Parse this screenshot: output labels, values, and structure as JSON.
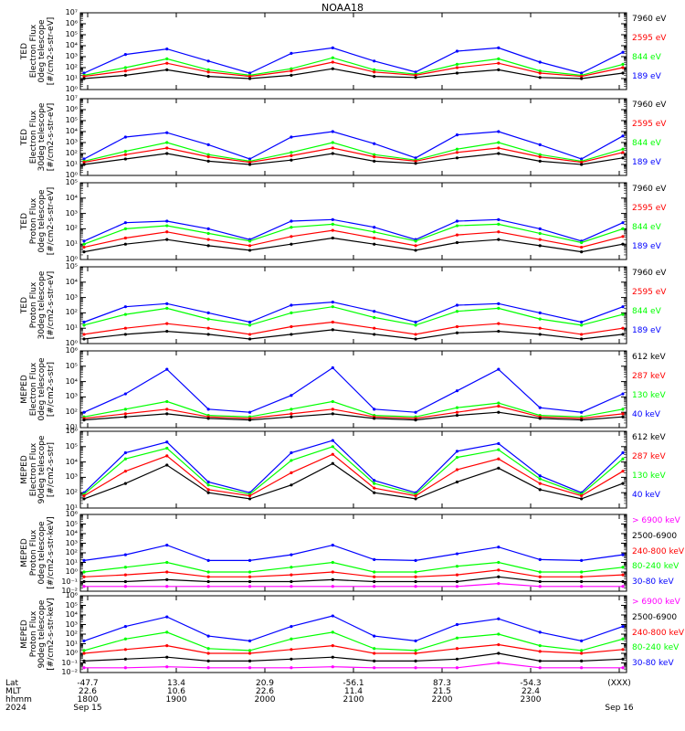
{
  "title": "NOAA18",
  "colors": {
    "black": "#000000",
    "red": "#ff0000",
    "green": "#00ff00",
    "blue": "#0000ff",
    "magenta": "#ff00ff"
  },
  "chart_data": [
    {
      "type": "line",
      "panel": "ted-e-0",
      "ylabel": [
        "TED",
        "Electron Flux",
        "0deg telescope",
        "[#/cm2-s-str-eV]"
      ],
      "yscale": "log",
      "ylim_exp": [
        0,
        7
      ],
      "legend": [
        {
          "name": "7960 eV",
          "color": "black"
        },
        {
          "name": "2595 eV",
          "color": "red"
        },
        {
          "name": "844 eV",
          "color": "green"
        },
        {
          "name": "189 eV",
          "color": "blue"
        }
      ],
      "series": [
        {
          "name": "7960 eV",
          "values": [
            1.0,
            1.3,
            1.8,
            1.2,
            1.0,
            1.3,
            1.9,
            1.2,
            1.1,
            1.5,
            1.8,
            1.1,
            1.0,
            1.5
          ]
        },
        {
          "name": "2595 eV",
          "values": [
            1.2,
            1.7,
            2.4,
            1.6,
            1.2,
            1.7,
            2.5,
            1.6,
            1.3,
            2.0,
            2.4,
            1.5,
            1.2,
            2.0
          ]
        },
        {
          "name": "844 eV",
          "values": [
            1.3,
            2.0,
            2.8,
            1.8,
            1.3,
            1.9,
            2.9,
            1.8,
            1.4,
            2.3,
            2.8,
            1.7,
            1.3,
            2.3
          ]
        },
        {
          "name": "189 eV",
          "values": [
            1.5,
            3.2,
            3.7,
            2.6,
            1.5,
            3.3,
            3.8,
            2.6,
            1.6,
            3.5,
            3.8,
            2.5,
            1.5,
            3.4
          ]
        }
      ]
    },
    {
      "type": "line",
      "panel": "ted-e-30",
      "ylabel": [
        "TED",
        "Electron Flux",
        "30deg telescope",
        "[#/cm2-s-str-eV]"
      ],
      "yscale": "log",
      "ylim_exp": [
        0,
        7
      ],
      "legend": [
        {
          "name": "7960 eV",
          "color": "black"
        },
        {
          "name": "2595 eV",
          "color": "red"
        },
        {
          "name": "844 eV",
          "color": "green"
        },
        {
          "name": "189 eV",
          "color": "blue"
        }
      ],
      "series": [
        {
          "name": "7960 eV",
          "values": [
            1.0,
            1.5,
            2.0,
            1.3,
            1.0,
            1.4,
            2.0,
            1.3,
            1.1,
            1.6,
            2.0,
            1.3,
            1.0,
            1.6
          ]
        },
        {
          "name": "2595 eV",
          "values": [
            1.2,
            1.9,
            2.5,
            1.7,
            1.2,
            1.8,
            2.5,
            1.7,
            1.3,
            2.1,
            2.5,
            1.7,
            1.2,
            2.1
          ]
        },
        {
          "name": "844 eV",
          "values": [
            1.3,
            2.2,
            3.0,
            1.9,
            1.3,
            2.1,
            3.0,
            1.9,
            1.4,
            2.4,
            3.0,
            1.9,
            1.3,
            2.4
          ]
        },
        {
          "name": "189 eV",
          "values": [
            1.5,
            3.5,
            3.9,
            2.8,
            1.5,
            3.5,
            4.0,
            2.9,
            1.6,
            3.7,
            4.0,
            2.8,
            1.5,
            3.6
          ]
        }
      ]
    },
    {
      "type": "line",
      "panel": "ted-p-0",
      "ylabel": [
        "TED",
        "Proton Flux",
        "0deg telescope",
        "[#/cm2-s-str-eV]"
      ],
      "yscale": "log",
      "ylim_exp": [
        0,
        5
      ],
      "legend": [
        {
          "name": "7960 eV",
          "color": "black"
        },
        {
          "name": "2595 eV",
          "color": "red"
        },
        {
          "name": "844 eV",
          "color": "green"
        },
        {
          "name": "189 eV",
          "color": "blue"
        }
      ],
      "series": [
        {
          "name": "7960 eV",
          "values": [
            0.5,
            1.0,
            1.3,
            0.9,
            0.6,
            1.0,
            1.4,
            1.0,
            0.6,
            1.1,
            1.3,
            0.9,
            0.5,
            1.0
          ]
        },
        {
          "name": "2595 eV",
          "values": [
            0.8,
            1.4,
            1.8,
            1.3,
            0.9,
            1.5,
            1.9,
            1.4,
            0.9,
            1.6,
            1.8,
            1.3,
            0.8,
            1.5
          ]
        },
        {
          "name": "844 eV",
          "values": [
            1.0,
            2.0,
            2.2,
            1.7,
            1.2,
            2.1,
            2.3,
            1.8,
            1.2,
            2.2,
            2.3,
            1.7,
            1.1,
            2.0
          ]
        },
        {
          "name": "189 eV",
          "values": [
            1.2,
            2.4,
            2.5,
            2.0,
            1.3,
            2.5,
            2.6,
            2.1,
            1.3,
            2.5,
            2.6,
            2.0,
            1.2,
            2.4
          ]
        }
      ]
    },
    {
      "type": "line",
      "panel": "ted-p-30",
      "ylabel": [
        "TED",
        "Proton Flux",
        "30deg telescope",
        "[#/cm2-s-str-eV]"
      ],
      "yscale": "log",
      "ylim_exp": [
        0,
        5
      ],
      "legend": [
        {
          "name": "7960 eV",
          "color": "black"
        },
        {
          "name": "2595 eV",
          "color": "red"
        },
        {
          "name": "844 eV",
          "color": "green"
        },
        {
          "name": "189 eV",
          "color": "blue"
        }
      ],
      "series": [
        {
          "name": "7960 eV",
          "values": [
            0.3,
            0.6,
            0.8,
            0.6,
            0.3,
            0.6,
            0.9,
            0.6,
            0.3,
            0.7,
            0.8,
            0.6,
            0.3,
            0.6
          ]
        },
        {
          "name": "2595 eV",
          "values": [
            0.6,
            1.0,
            1.3,
            1.0,
            0.6,
            1.1,
            1.4,
            1.0,
            0.6,
            1.1,
            1.3,
            1.0,
            0.6,
            1.0
          ]
        },
        {
          "name": "844 eV",
          "values": [
            1.2,
            1.9,
            2.3,
            1.6,
            1.2,
            2.0,
            2.4,
            1.7,
            1.2,
            2.1,
            2.3,
            1.6,
            1.2,
            1.9
          ]
        },
        {
          "name": "189 eV",
          "values": [
            1.4,
            2.4,
            2.6,
            2.0,
            1.4,
            2.5,
            2.7,
            2.1,
            1.4,
            2.5,
            2.6,
            2.0,
            1.4,
            2.4
          ]
        }
      ]
    },
    {
      "type": "line",
      "panel": "meped-e-0",
      "ylabel": [
        "MEPED",
        "Electron Flux",
        "0deg telescope",
        "[#/cm2-s-str]"
      ],
      "yscale": "log",
      "ylim_exp": [
        1,
        6
      ],
      "legend": [
        {
          "name": "612 keV",
          "color": "black"
        },
        {
          "name": "287 keV",
          "color": "red"
        },
        {
          "name": "130 keV",
          "color": "green"
        },
        {
          "name": "40 keV",
          "color": "blue"
        }
      ],
      "series": [
        {
          "name": "612 keV",
          "values": [
            1.5,
            1.7,
            1.9,
            1.6,
            1.5,
            1.7,
            1.9,
            1.6,
            1.5,
            1.8,
            2.0,
            1.6,
            1.5,
            1.7
          ]
        },
        {
          "name": "287 keV",
          "values": [
            1.6,
            1.9,
            2.2,
            1.7,
            1.6,
            1.9,
            2.2,
            1.7,
            1.6,
            2.0,
            2.4,
            1.7,
            1.6,
            1.9
          ]
        },
        {
          "name": "130 keV",
          "values": [
            1.7,
            2.2,
            2.7,
            1.8,
            1.7,
            2.2,
            2.7,
            1.8,
            1.7,
            2.3,
            2.6,
            1.8,
            1.7,
            2.2
          ]
        },
        {
          "name": "40 keV",
          "values": [
            2.0,
            3.2,
            4.8,
            2.2,
            2.0,
            3.1,
            4.9,
            2.2,
            2.0,
            3.4,
            4.8,
            2.3,
            2.0,
            3.2
          ]
        }
      ]
    },
    {
      "type": "line",
      "panel": "meped-e-90",
      "ylabel": [
        "MEPED",
        "Electron Flux",
        "90deg telescope",
        "[#/cm2-s-str]"
      ],
      "yscale": "log",
      "ylim_exp": [
        1,
        6
      ],
      "legend": [
        {
          "name": "612 keV",
          "color": "black"
        },
        {
          "name": "287 keV",
          "color": "red"
        },
        {
          "name": "130 keV",
          "color": "green"
        },
        {
          "name": "40 keV",
          "color": "blue"
        }
      ],
      "series": [
        {
          "name": "612 keV",
          "values": [
            1.6,
            2.6,
            3.8,
            2.0,
            1.6,
            2.5,
            3.9,
            2.0,
            1.6,
            2.7,
            3.6,
            2.2,
            1.6,
            2.6
          ]
        },
        {
          "name": "287 keV",
          "values": [
            1.8,
            3.4,
            4.4,
            2.2,
            1.8,
            3.3,
            4.5,
            2.3,
            1.8,
            3.5,
            4.2,
            2.6,
            1.8,
            3.4
          ]
        },
        {
          "name": "130 keV",
          "values": [
            1.9,
            4.2,
            4.9,
            2.5,
            1.9,
            4.1,
            5.0,
            2.6,
            1.9,
            4.3,
            4.8,
            2.9,
            1.9,
            4.2
          ]
        },
        {
          "name": "40 keV",
          "values": [
            2.0,
            4.6,
            5.3,
            2.7,
            2.0,
            4.6,
            5.4,
            2.8,
            2.0,
            4.7,
            5.2,
            3.1,
            2.0,
            4.6
          ]
        }
      ]
    },
    {
      "type": "line",
      "panel": "meped-p-0",
      "ylabel": [
        "MEPED",
        "Proton Flux",
        "0deg telescope",
        "[#/cm2-s-str-keV]"
      ],
      "yscale": "log",
      "ylim_exp": [
        -2,
        6
      ],
      "legend": [
        {
          "name": "> 6900 keV",
          "color": "magenta"
        },
        {
          "name": "2500-6900",
          "color": "black"
        },
        {
          "name": "240-800 keV",
          "color": "red"
        },
        {
          "name": "80-240 keV",
          "color": "green"
        },
        {
          "name": "30-80 keV",
          "color": "blue"
        }
      ],
      "series": [
        {
          "name": "> 6900 keV",
          "values": [
            -1.5,
            -1.5,
            -1.5,
            -1.5,
            -1.5,
            -1.5,
            -1.5,
            -1.5,
            -1.5,
            -1.5,
            -1.2,
            -1.5,
            -1.5,
            -1.5
          ]
        },
        {
          "name": "2500-6900",
          "values": [
            -1.0,
            -1.0,
            -0.8,
            -1.0,
            -1.0,
            -1.0,
            -0.8,
            -1.0,
            -1.0,
            -1.0,
            -0.5,
            -1.0,
            -1.0,
            -1.0
          ]
        },
        {
          "name": "240-800 keV",
          "values": [
            -0.5,
            -0.3,
            0.0,
            -0.5,
            -0.5,
            -0.3,
            0.0,
            -0.5,
            -0.5,
            -0.3,
            0.2,
            -0.5,
            -0.5,
            -0.3
          ]
        },
        {
          "name": "80-240 keV",
          "values": [
            0.0,
            0.5,
            1.0,
            0.0,
            0.0,
            0.5,
            1.0,
            0.0,
            0.0,
            0.6,
            1.0,
            0.0,
            0.0,
            0.5
          ]
        },
        {
          "name": "30-80 keV",
          "values": [
            1.2,
            1.8,
            2.8,
            1.2,
            1.2,
            1.8,
            2.8,
            1.3,
            1.2,
            1.9,
            2.6,
            1.3,
            1.2,
            1.8
          ]
        }
      ]
    },
    {
      "type": "line",
      "panel": "meped-p-90",
      "ylabel": [
        "MEPED",
        "Proton Flux",
        "90deg telescope",
        "[#/cm2-s-str-keV]"
      ],
      "yscale": "log",
      "ylim_exp": [
        -2,
        6
      ],
      "legend": [
        {
          "name": "> 6900 keV",
          "color": "magenta"
        },
        {
          "name": "2500-6900",
          "color": "black"
        },
        {
          "name": "240-800 keV",
          "color": "red"
        },
        {
          "name": "80-240 keV",
          "color": "green"
        },
        {
          "name": "30-80 keV",
          "color": "blue"
        }
      ],
      "series": [
        {
          "name": "> 6900 keV",
          "values": [
            -1.5,
            -1.5,
            -1.4,
            -1.5,
            -1.5,
            -1.5,
            -1.4,
            -1.5,
            -1.5,
            -1.5,
            -1.0,
            -1.5,
            -1.5,
            -1.5
          ]
        },
        {
          "name": "2500-6900",
          "values": [
            -0.8,
            -0.6,
            -0.4,
            -0.8,
            -0.8,
            -0.6,
            -0.4,
            -0.8,
            -0.8,
            -0.6,
            0.0,
            -0.8,
            -0.8,
            -0.6
          ]
        },
        {
          "name": "240-800 keV",
          "values": [
            0.0,
            0.4,
            0.8,
            0.0,
            0.0,
            0.4,
            0.8,
            0.0,
            0.0,
            0.5,
            0.9,
            0.2,
            0.0,
            0.4
          ]
        },
        {
          "name": "80-240 keV",
          "values": [
            0.3,
            1.5,
            2.2,
            0.5,
            0.3,
            1.5,
            2.2,
            0.5,
            0.3,
            1.6,
            2.0,
            0.8,
            0.3,
            1.5
          ]
        },
        {
          "name": "30-80 keV",
          "values": [
            1.3,
            2.8,
            3.8,
            1.8,
            1.3,
            2.8,
            3.9,
            1.8,
            1.3,
            3.0,
            3.6,
            2.2,
            1.3,
            2.8
          ]
        }
      ]
    }
  ],
  "ephemeris": {
    "labels": [
      "Lat",
      "MLT",
      "hhmm",
      "2024"
    ],
    "columns": [
      {
        "lat": "-47.7",
        "mlt": "22.6",
        "hhmm": "1800",
        "date": "Sep 15"
      },
      {
        "lat": "13.4",
        "mlt": "10.6",
        "hhmm": "1900",
        "date": ""
      },
      {
        "lat": "20.9",
        "mlt": "22.6",
        "hhmm": "2000",
        "date": ""
      },
      {
        "lat": "-56.1",
        "mlt": "11.4",
        "hhmm": "2100",
        "date": ""
      },
      {
        "lat": "87.3",
        "mlt": "21.5",
        "hhmm": "2200",
        "date": ""
      },
      {
        "lat": "-54.3",
        "mlt": "22.4",
        "hhmm": "2300",
        "date": ""
      },
      {
        "lat": "(XXX)",
        "mlt": "",
        "hhmm": "",
        "date": "Sep 16"
      }
    ]
  }
}
